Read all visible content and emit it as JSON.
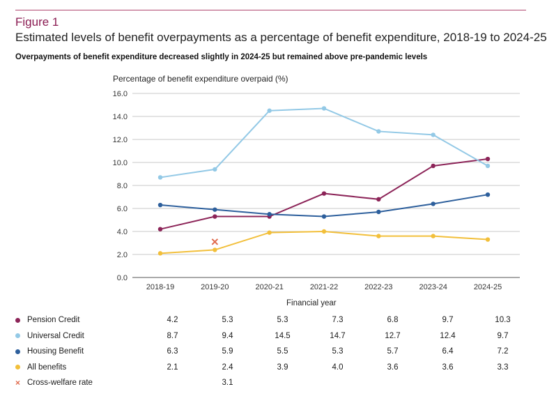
{
  "figure_label": "Figure 1",
  "title": "Estimated levels of benefit overpayments as a percentage of benefit expenditure, 2018-19 to 2024-25",
  "subtitle": "Overpayments of benefit expenditure decreased slightly in 2024-25 but remained above pre-pandemic levels",
  "colors": {
    "pension": "#8c2458",
    "universal": "#93c9e6",
    "housing": "#2d5f9c",
    "all": "#f2bf3a",
    "cross": "#e06a4c",
    "rule": "#b0486f"
  },
  "chart_data": {
    "type": "line",
    "ylabel": "Percentage of benefit expenditure overpaid (%)",
    "xlabel": "Financial year",
    "ylim": [
      0,
      16
    ],
    "yticks": [
      "0.0",
      "2.0",
      "4.0",
      "6.0",
      "8.0",
      "10.0",
      "12.0",
      "14.0",
      "16.0"
    ],
    "grid": true,
    "categories": [
      "2018-19",
      "2019-20",
      "2020-21",
      "2021-22",
      "2022-23",
      "2023-24",
      "2024-25"
    ],
    "series": [
      {
        "name": "Pension Credit",
        "color": "#8c2458",
        "values": [
          4.2,
          5.3,
          5.3,
          7.3,
          6.8,
          9.7,
          10.3
        ]
      },
      {
        "name": "Universal Credit",
        "color": "#93c9e6",
        "values": [
          8.7,
          9.4,
          14.5,
          14.7,
          12.7,
          12.4,
          9.7
        ]
      },
      {
        "name": "Housing Benefit",
        "color": "#2d5f9c",
        "values": [
          6.3,
          5.9,
          5.5,
          5.3,
          5.7,
          6.4,
          7.2
        ]
      },
      {
        "name": "All benefits",
        "color": "#f2bf3a",
        "values": [
          2.1,
          2.4,
          3.9,
          4.0,
          3.6,
          3.6,
          3.3
        ]
      }
    ],
    "cross_welfare": {
      "name": "Cross-welfare rate",
      "color": "#e06a4c",
      "category": "2019-20",
      "value": 3.1
    }
  },
  "table": {
    "rows": [
      {
        "label": "Pension Credit",
        "marker": "dot",
        "color": "#8c2458",
        "values": [
          "4.2",
          "5.3",
          "5.3",
          "7.3",
          "6.8",
          "9.7",
          "10.3"
        ]
      },
      {
        "label": "Universal Credit",
        "marker": "dot",
        "color": "#93c9e6",
        "values": [
          "8.7",
          "9.4",
          "14.5",
          "14.7",
          "12.7",
          "12.4",
          "9.7"
        ]
      },
      {
        "label": "Housing Benefit",
        "marker": "dot",
        "color": "#2d5f9c",
        "values": [
          "6.3",
          "5.9",
          "5.5",
          "5.3",
          "5.7",
          "6.4",
          "7.2"
        ]
      },
      {
        "label": "All benefits",
        "marker": "dot",
        "color": "#f2bf3a",
        "values": [
          "2.1",
          "2.4",
          "3.9",
          "4.0",
          "3.6",
          "3.6",
          "3.3"
        ]
      },
      {
        "label": "Cross-welfare rate",
        "marker": "cross",
        "color": "#e06a4c",
        "values": [
          "",
          "3.1",
          "",
          "",
          "",
          "",
          ""
        ]
      }
    ]
  }
}
